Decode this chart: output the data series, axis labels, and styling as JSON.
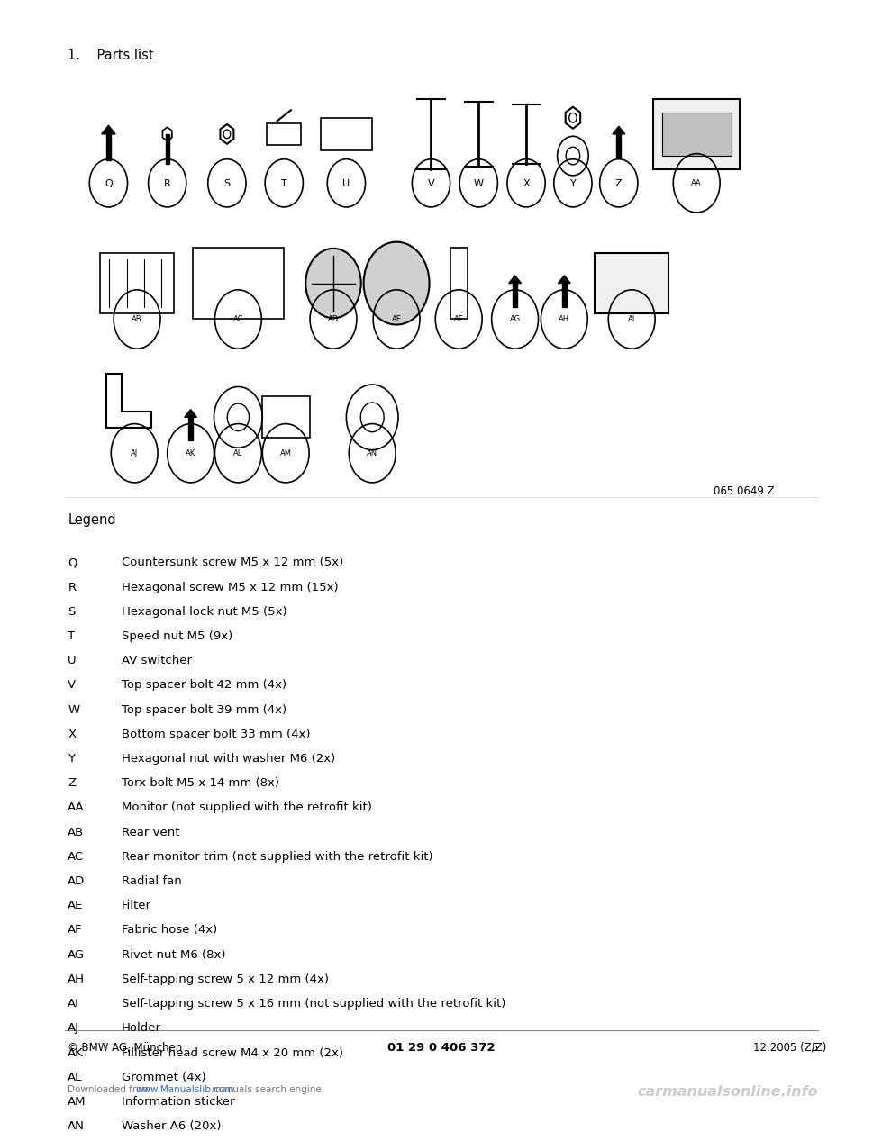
{
  "title": "1.    Parts list",
  "legend_title": "Legend",
  "legend_items": [
    [
      "Q",
      "Countersunk screw M5 x 12 mm (5x)"
    ],
    [
      "R",
      "Hexagonal screw M5 x 12 mm (15x)"
    ],
    [
      "S",
      "Hexagonal lock nut M5 (5x)"
    ],
    [
      "T",
      "Speed nut M5 (9x)"
    ],
    [
      "U",
      "AV switcher"
    ],
    [
      "V",
      "Top spacer bolt 42 mm (4x)"
    ],
    [
      "W",
      "Top spacer bolt 39 mm (4x)"
    ],
    [
      "X",
      "Bottom spacer bolt 33 mm (4x)"
    ],
    [
      "Y",
      "Hexagonal nut with washer M6 (2x)"
    ],
    [
      "Z",
      "Torx bolt M5 x 14 mm (8x)"
    ],
    [
      "AA",
      "Monitor (not supplied with the retrofit kit)"
    ],
    [
      "AB",
      "Rear vent"
    ],
    [
      "AC",
      "Rear monitor trim (not supplied with the retrofit kit)"
    ],
    [
      "AD",
      "Radial fan"
    ],
    [
      "AE",
      "Filter"
    ],
    [
      "AF",
      "Fabric hose (4x)"
    ],
    [
      "AG",
      "Rivet nut M6 (8x)"
    ],
    [
      "AH",
      "Self-tapping screw 5 x 12 mm (4x)"
    ],
    [
      "AI",
      "Self-tapping screw 5 x 16 mm (not supplied with the retrofit kit)"
    ],
    [
      "AJ",
      "Holder"
    ],
    [
      "AK",
      "Fillister head screw M4 x 20 mm (2x)"
    ],
    [
      "AL",
      "Grommet (4x)"
    ],
    [
      "AM",
      "Information sticker"
    ],
    [
      "AN",
      "Washer A6 (20x)"
    ]
  ],
  "diagram_ref": "065 0649 Z",
  "footer_left": "© BMW AG, München",
  "footer_center": "01 29 0 406 372",
  "footer_right": "12.2005 (Z/Z)",
  "footer_page": "5",
  "watermark_left": "Downloaded from ",
  "watermark_url": "www.Manualslib.com",
  "watermark_right": " manuals search engine",
  "watermark_brand": "carmanualsonline.info",
  "bg_color": "#ffffff",
  "text_color": "#000000",
  "legend_font_size": 9.5,
  "title_font_size": 10.5,
  "legend_title_font_size": 10.5,
  "footer_font_size": 8.5,
  "watermark_font_size": 7.5
}
